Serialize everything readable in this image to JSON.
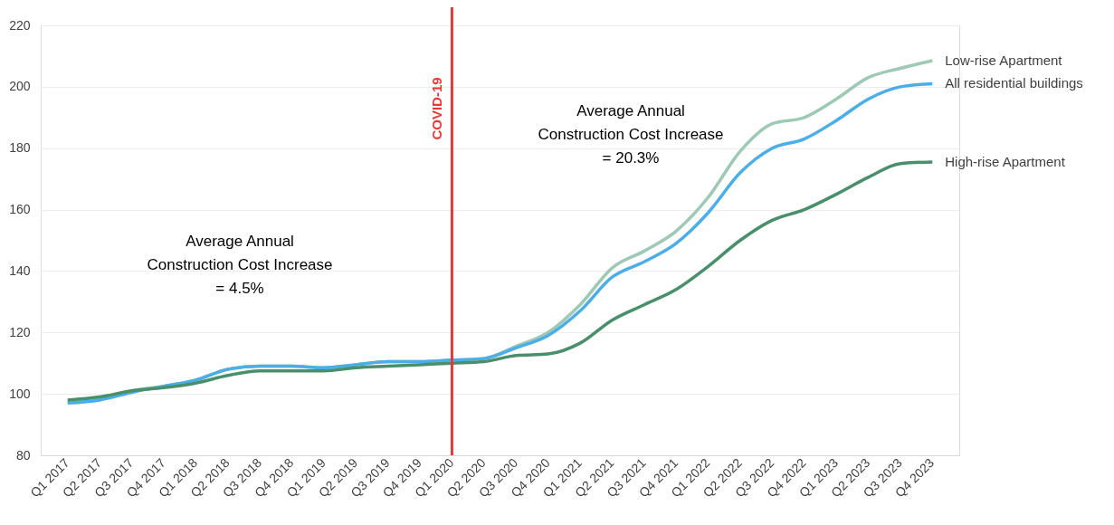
{
  "chart_data": {
    "type": "line",
    "categories": [
      "Q1 2017",
      "Q2 2017",
      "Q3 2017",
      "Q4 2017",
      "Q1 2018",
      "Q2 2018",
      "Q3 2018",
      "Q4 2018",
      "Q1 2019",
      "Q2 2019",
      "Q3 2019",
      "Q4 2019",
      "Q1 2020",
      "Q2 2020",
      "Q3 2020",
      "Q4 2020",
      "Q1 2021",
      "Q2 2021",
      "Q3 2021",
      "Q4 2021",
      "Q1 2022",
      "Q2 2022",
      "Q3 2022",
      "Q4 2022",
      "Q1 2023",
      "Q2 2023",
      "Q3 2023",
      "Q4 2023"
    ],
    "series": [
      {
        "name": "Low-rise Apartment",
        "color": "#9dc9b5",
        "values": [
          97.5,
          98.5,
          101,
          102.5,
          104.5,
          108,
          109,
          109,
          108.5,
          109.5,
          110.5,
          110.5,
          111,
          111.5,
          115.5,
          120,
          129,
          141,
          146.5,
          153,
          164,
          179,
          188,
          190,
          196,
          203,
          206,
          208.5
        ]
      },
      {
        "name": "All residential buildings",
        "color": "#4baee8",
        "values": [
          97,
          98,
          100.5,
          102.5,
          104.5,
          108,
          109,
          109,
          108.5,
          109.5,
          110.5,
          110.5,
          111,
          111.5,
          115,
          119,
          127,
          138,
          143,
          149,
          159,
          172,
          180,
          183,
          189,
          196,
          200,
          201
        ]
      },
      {
        "name": "High-rise Apartment",
        "color": "#4a8f6c",
        "values": [
          98,
          99,
          101,
          102,
          103.5,
          106,
          107.5,
          107.5,
          107.5,
          108.5,
          109,
          109.5,
          110,
          110.5,
          112.5,
          113,
          116.5,
          124,
          129,
          134,
          141.5,
          150,
          156.5,
          160,
          165,
          170.5,
          175,
          175.5
        ]
      }
    ],
    "ylim": [
      80,
      220
    ],
    "yticks": [
      80,
      100,
      120,
      140,
      160,
      180,
      200,
      220
    ],
    "grid": "y",
    "marker": "none",
    "line_style": "solid",
    "ref_lines": [
      {
        "axis": "x",
        "value": "Q1 2020",
        "label": "COVID-19",
        "color": "#e53935"
      }
    ],
    "annotations": [
      "Average Annual\nConstruction Cost  Increase\n= 4.5%",
      "Average Annual\nConstruction Cost  Increase\n= 20.3%"
    ]
  }
}
